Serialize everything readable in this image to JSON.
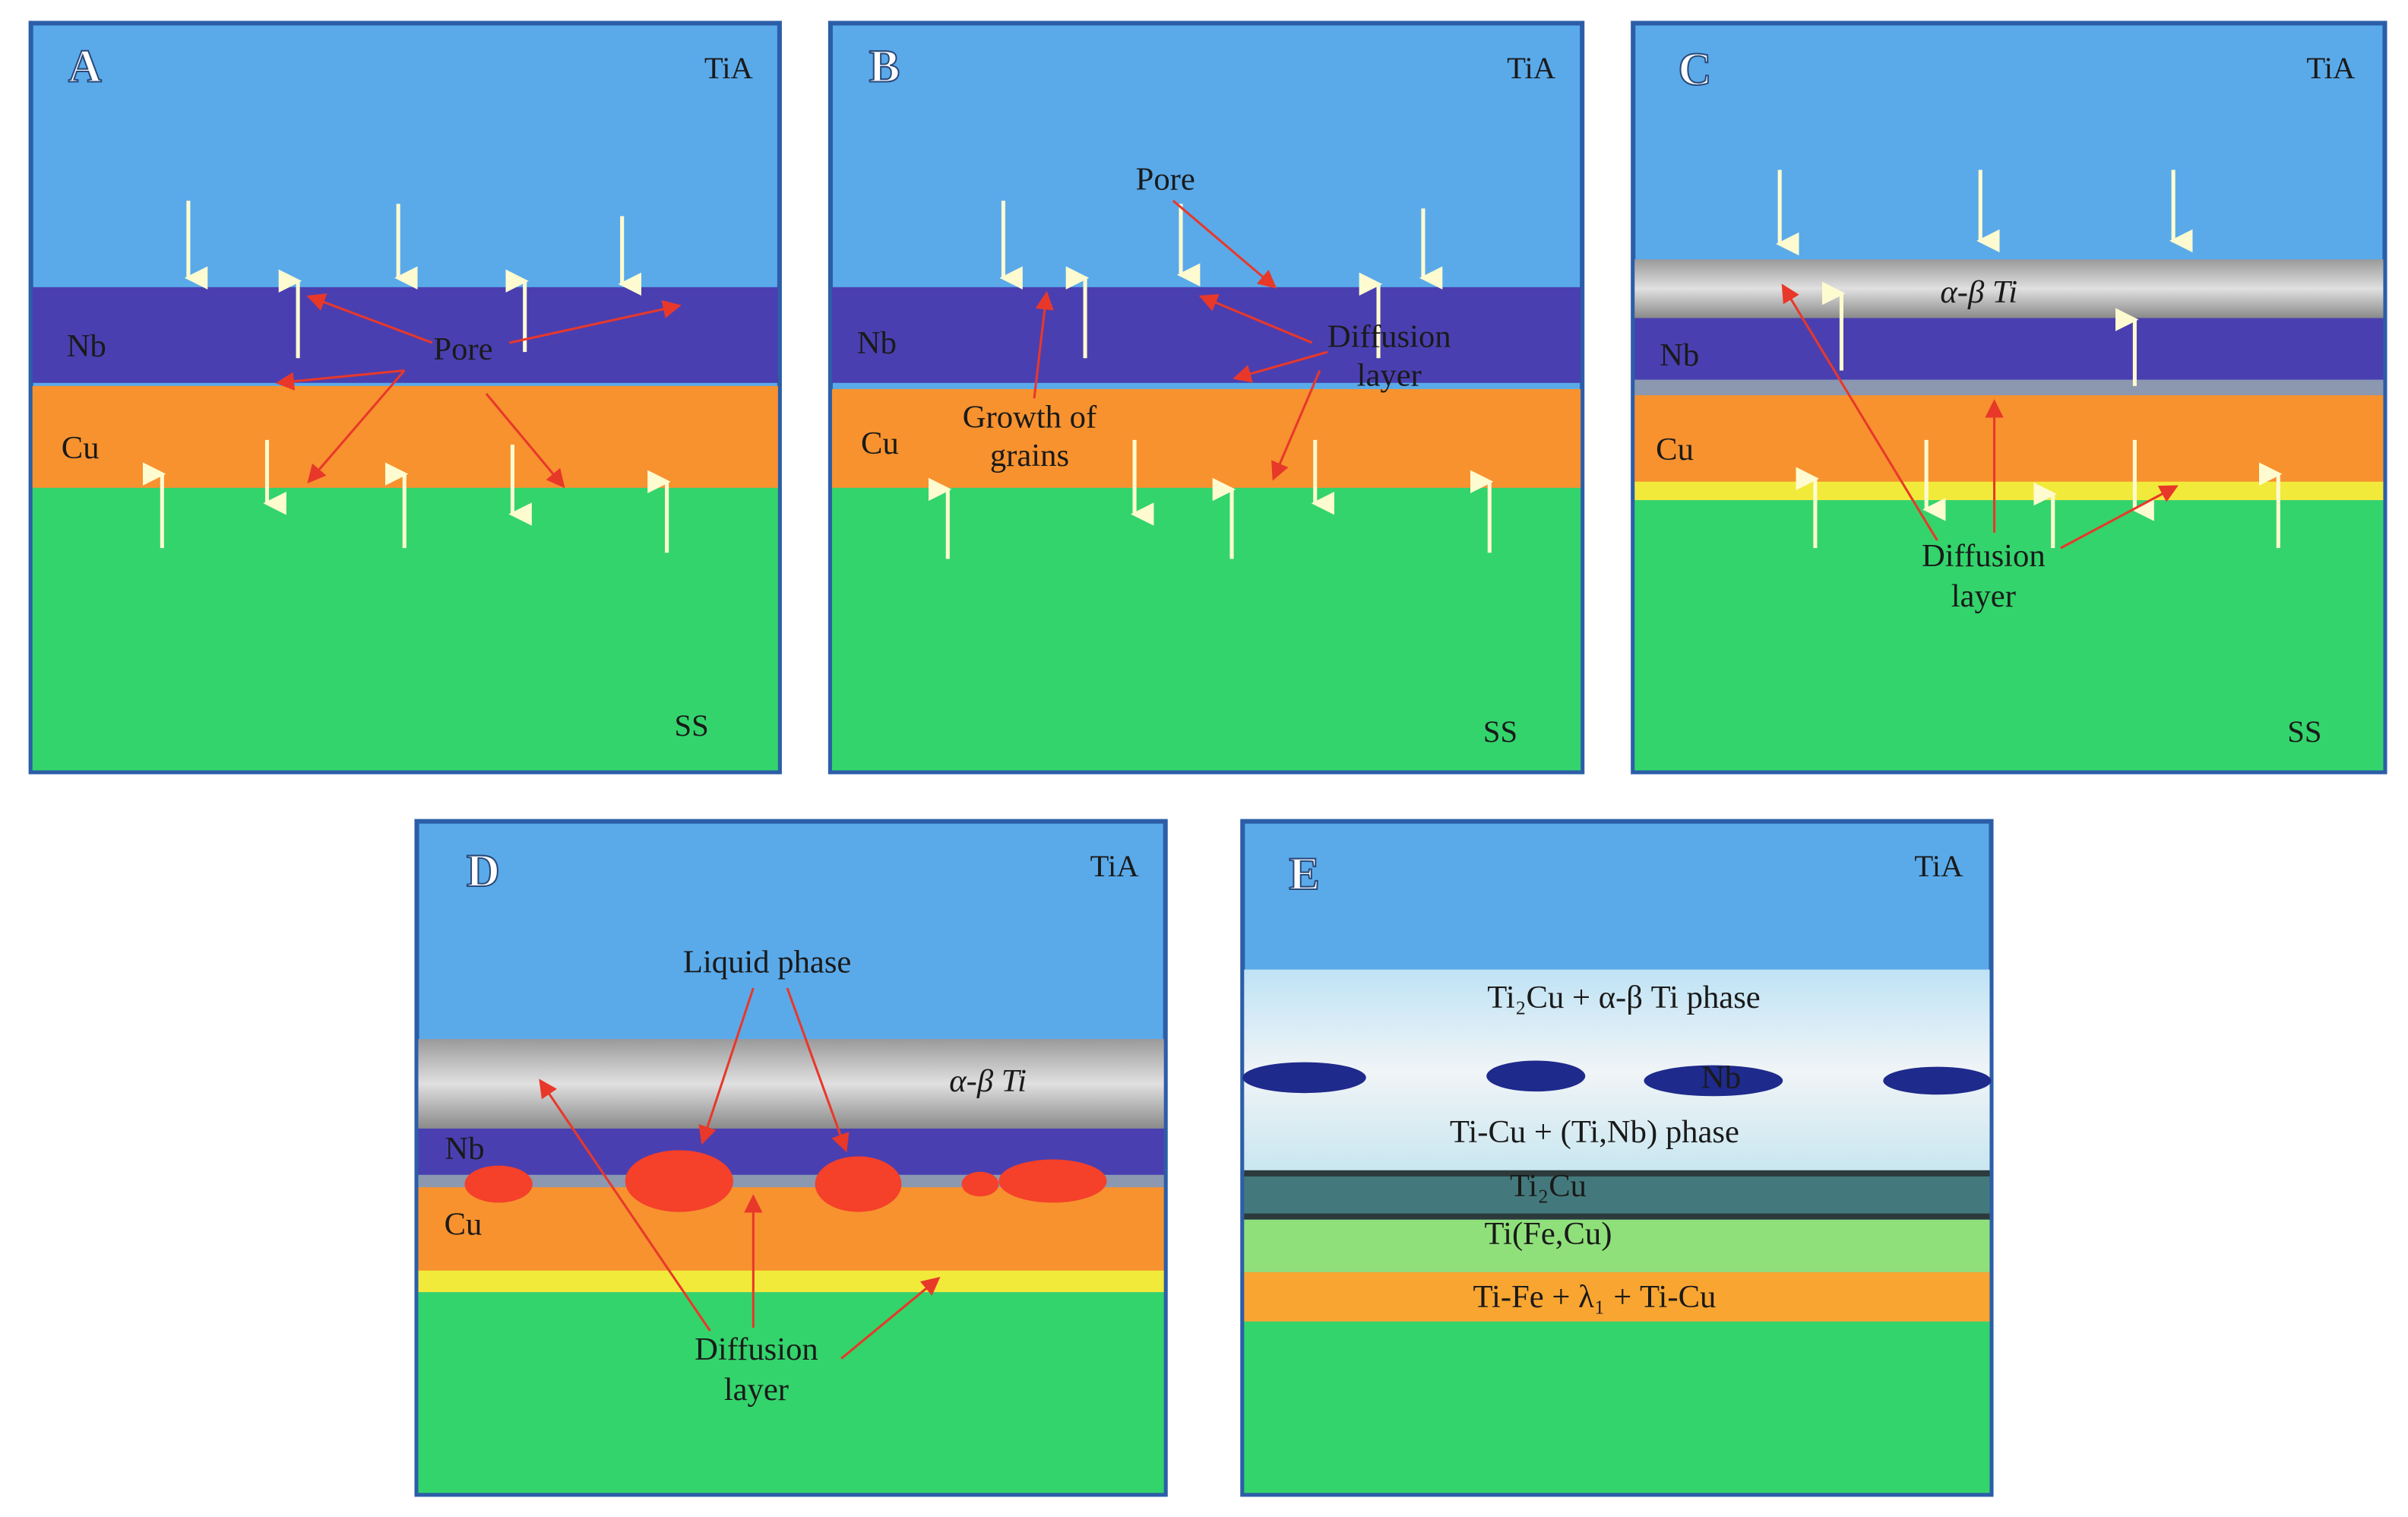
{
  "panels": [
    {
      "label": "A",
      "top": "TiA",
      "bottom": "SS",
      "nb": "Nb",
      "cu": "Cu",
      "pore": "Pore"
    },
    {
      "label": "B",
      "top": "TiA",
      "bottom": "SS",
      "nb": "Nb",
      "cu": "Cu",
      "pore": "Pore",
      "diffusion": [
        "Diffusion",
        "layer"
      ],
      "growth": [
        "Growth of",
        "grains"
      ]
    },
    {
      "label": "C",
      "top": "TiA",
      "bottom": "SS",
      "ti": "α-β Ti",
      "nb": "Nb",
      "cu": "Cu",
      "diffusion": [
        "Diffusion",
        "layer"
      ]
    },
    {
      "label": "D",
      "top": "TiA",
      "ti": "α-β Ti",
      "nb": "Nb",
      "cu": "Cu",
      "liquid": "Liquid phase",
      "diffusion": [
        "Diffusion",
        "layer"
      ]
    },
    {
      "label": "E",
      "top": "TiA",
      "layers": [
        "Ti₂Cu + α-β Ti phase",
        "Nb",
        "Ti-Cu + (Ti,Nb) phase",
        "Ti₂Cu",
        "Ti(Fe,Cu)",
        "Ti-Fe + λ₁ + Ti-Cu"
      ]
    }
  ]
}
